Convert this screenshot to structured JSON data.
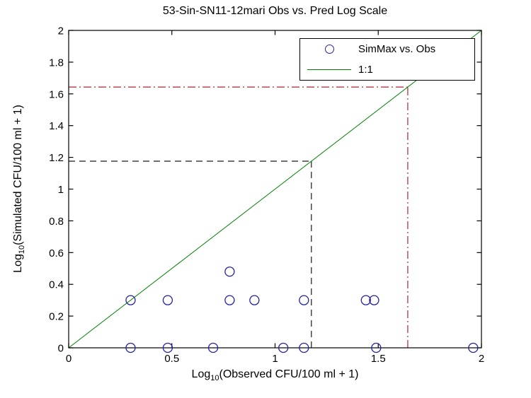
{
  "chart_data": {
    "type": "scatter",
    "title": "53-Sin-SN11-12mari Obs vs. Pred Log Scale",
    "xlabel": "Log10(Observed CFU/100 ml + 1)",
    "ylabel": "Log10(Simulated CFU/100 ml + 1)",
    "xlabel_parts": {
      "prefix": "Log",
      "sub": "10",
      "rest": "(Observed CFU/100 ml + 1)"
    },
    "ylabel_parts": {
      "prefix": "Log",
      "sub": "10",
      "rest": "(Simulated CFU/100 ml + 1)"
    },
    "xlim": [
      0,
      2
    ],
    "ylim": [
      0,
      2
    ],
    "xticks": [
      0,
      0.5,
      1,
      1.5,
      2
    ],
    "xtick_labels": [
      "0",
      "0.5",
      "1",
      "1.5",
      "2"
    ],
    "yticks": [
      0,
      0.2,
      0.4,
      0.6,
      0.8,
      1,
      1.2,
      1.4,
      1.6,
      1.8,
      2
    ],
    "ytick_labels": [
      "0",
      "0.2",
      "0.4",
      "0.6",
      "0.8",
      "1",
      "1.2",
      "1.4",
      "1.6",
      "1.8",
      "2"
    ],
    "grid": false,
    "series": [
      {
        "name": "SimMax vs. Obs",
        "type": "scatter",
        "marker": "circle-open",
        "color": "#2222a2",
        "points": [
          [
            0.3,
            0.3
          ],
          [
            0.48,
            0.3
          ],
          [
            0.78,
            0.48
          ],
          [
            0.78,
            0.3
          ],
          [
            0.9,
            0.3
          ],
          [
            1.14,
            0.3
          ],
          [
            1.44,
            0.3
          ],
          [
            1.48,
            0.3
          ],
          [
            0.3,
            0.0
          ],
          [
            0.48,
            0.0
          ],
          [
            0.7,
            0.0
          ],
          [
            1.04,
            0.0
          ],
          [
            1.14,
            0.0
          ],
          [
            1.49,
            0.0
          ],
          [
            1.96,
            0.0
          ]
        ]
      },
      {
        "name": "1:1",
        "type": "line",
        "color": "#008000",
        "points": [
          [
            0,
            0
          ],
          [
            2,
            2
          ]
        ]
      }
    ],
    "reference_lines": [
      {
        "name": "black-dashed-horizontal",
        "style": "dashed",
        "color": "#1a1a1a",
        "from": [
          0,
          1.176
        ],
        "to": [
          1.176,
          1.176
        ]
      },
      {
        "name": "black-dashed-vertical",
        "style": "dashed",
        "color": "#1a1a1a",
        "from": [
          1.176,
          0
        ],
        "to": [
          1.176,
          1.176
        ]
      },
      {
        "name": "red-dashdot-horizontal",
        "style": "dashdot",
        "color": "#b22230",
        "from": [
          0,
          1.643
        ],
        "to": [
          1.643,
          1.643
        ]
      },
      {
        "name": "red-dashdot-vertical",
        "style": "dashdot",
        "color": "#b22230",
        "from": [
          1.643,
          0
        ],
        "to": [
          1.643,
          1.643
        ]
      }
    ],
    "legend": {
      "position": "top-right",
      "entries": [
        {
          "label": "SimMax vs. Obs",
          "marker": "circle-open",
          "color": "#2222a2"
        },
        {
          "label": "1:1",
          "marker": "line",
          "color": "#008000"
        }
      ]
    }
  }
}
